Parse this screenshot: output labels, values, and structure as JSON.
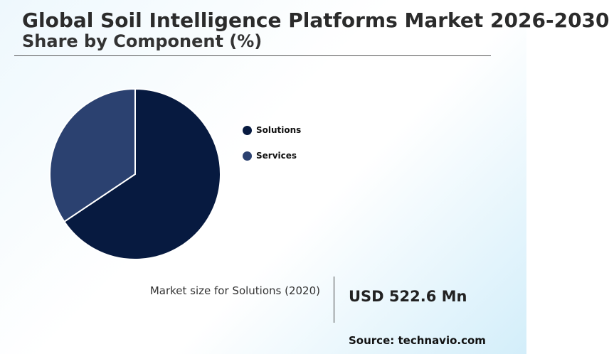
{
  "chart_data": {
    "type": "pie",
    "title": "Global Soil Intelligence Platforms Market 2026-2030",
    "subtitle": "Share by Component (%)",
    "categories": [
      "Solutions",
      "Services"
    ],
    "values": [
      65.6,
      34.4
    ],
    "colors": [
      "#071a40",
      "#2b4170"
    ],
    "legend_position": "right"
  },
  "kpi": {
    "label": "Market size for Solutions (2020)",
    "value": "USD 522.6 Mn"
  },
  "source": "Source: technavio.com"
}
